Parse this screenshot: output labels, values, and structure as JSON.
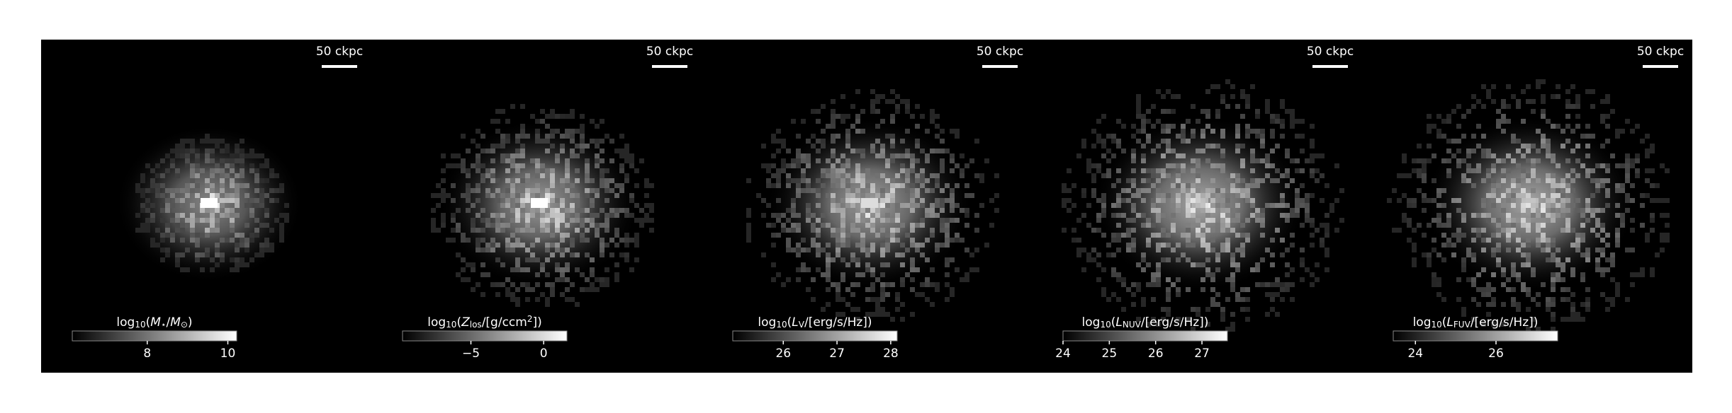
{
  "chart_data": [
    {
      "type": "image",
      "scalebar_label": "50 ckpc",
      "colorbar": {
        "label": [
          {
            "t": "log"
          },
          {
            "t": "10",
            "sub": true
          },
          {
            "t": "("
          },
          {
            "t": "M",
            "italic": true
          },
          {
            "t": "⋆",
            "sub": true
          },
          {
            "t": "/"
          },
          {
            "t": "M",
            "italic": true
          },
          {
            "t": "⊙",
            "sub": true
          },
          {
            "t": ")"
          }
        ],
        "clim": [
          6.14,
          10.22
        ],
        "ticks": [
          8,
          10
        ]
      }
    },
    {
      "type": "image",
      "scalebar_label": "50 ckpc",
      "colorbar": {
        "label": [
          {
            "t": "log"
          },
          {
            "t": "10",
            "sub": true
          },
          {
            "t": "("
          },
          {
            "t": "Z",
            "italic": true
          },
          {
            "t": "los",
            "sub": true
          },
          {
            "t": "/[g/ccm"
          },
          {
            "t": "2",
            "sup": true
          },
          {
            "t": "])"
          }
        ],
        "clim": [
          -9.7,
          1.6
        ],
        "ticks": [
          {
            "value": -5,
            "label": "−5"
          },
          0
        ]
      }
    },
    {
      "type": "image",
      "scalebar_label": "50 ckpc",
      "colorbar": {
        "label": [
          {
            "t": "log"
          },
          {
            "t": "10",
            "sub": true
          },
          {
            "t": "("
          },
          {
            "t": "L",
            "italic": true
          },
          {
            "t": "V",
            "sub": true
          },
          {
            "t": "/[erg/s/Hz])"
          }
        ],
        "clim": [
          25.06,
          28.12
        ],
        "ticks": [
          26,
          27,
          28
        ]
      }
    },
    {
      "type": "image",
      "scalebar_label": "50 ckpc",
      "colorbar": {
        "label": [
          {
            "t": "log"
          },
          {
            "t": "10",
            "sub": true
          },
          {
            "t": "("
          },
          {
            "t": "L",
            "italic": true
          },
          {
            "t": "NUV",
            "sub": true
          },
          {
            "t": "/[erg/s/Hz])"
          }
        ],
        "clim": [
          24,
          27.55
        ],
        "ticks": [
          24,
          25,
          26,
          27
        ]
      }
    },
    {
      "type": "image",
      "scalebar_label": "50 ckpc",
      "colorbar": {
        "label": [
          {
            "t": "log"
          },
          {
            "t": "10",
            "sub": true
          },
          {
            "t": "("
          },
          {
            "t": "L",
            "italic": true
          },
          {
            "t": "FUV",
            "sub": true
          },
          {
            "t": "/[erg/s/Hz])"
          }
        ],
        "clim": [
          23.45,
          27.53
        ],
        "ticks": [
          24,
          26
        ]
      }
    }
  ]
}
